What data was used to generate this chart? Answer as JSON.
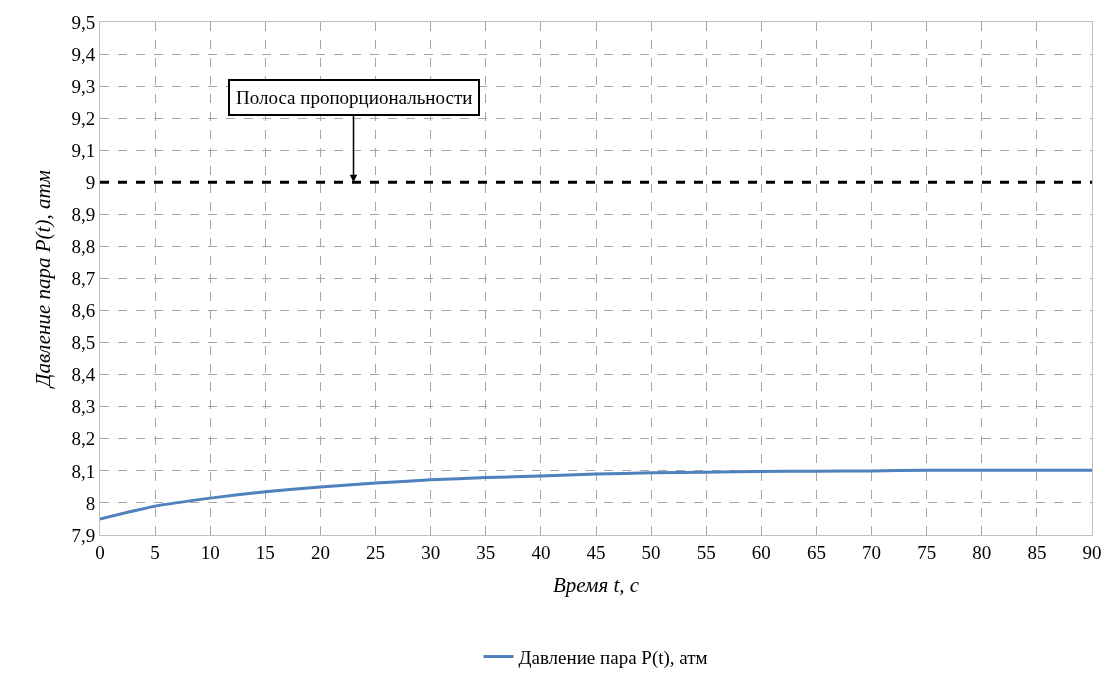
{
  "chart_data": {
    "type": "line",
    "xlabel": "Время t, с",
    "ylabel": "Давление пара P(t), атм",
    "x": [
      0,
      5,
      10,
      15,
      20,
      25,
      30,
      35,
      40,
      45,
      50,
      55,
      60,
      65,
      70,
      75,
      80,
      85,
      90
    ],
    "series": [
      {
        "name": "Давление пара P(t), атм",
        "color": "#4f81bd",
        "values": [
          7.95,
          7.99,
          8.015,
          8.035,
          8.05,
          8.062,
          8.072,
          8.079,
          8.084,
          8.09,
          8.094,
          8.096,
          8.098,
          8.099,
          8.1,
          8.102,
          8.102,
          8.102,
          8.102
        ]
      }
    ],
    "xlim": [
      0,
      90
    ],
    "xticks": [
      0,
      5,
      10,
      15,
      20,
      25,
      30,
      35,
      40,
      45,
      50,
      55,
      60,
      65,
      70,
      75,
      80,
      85,
      90
    ],
    "ylim": [
      7.9,
      9.5
    ],
    "yticks": [
      {
        "value": 7.9,
        "label": "7,9"
      },
      8,
      {
        "value": 8.1,
        "label": "8,1"
      },
      {
        "value": 8.2,
        "label": "8,2"
      },
      {
        "value": 8.3,
        "label": "8,3"
      },
      {
        "value": 8.4,
        "label": "8,4"
      },
      {
        "value": 8.5,
        "label": "8,5"
      },
      {
        "value": 8.6,
        "label": "8,6"
      },
      {
        "value": 8.7,
        "label": "8,7"
      },
      {
        "value": 8.8,
        "label": "8,8"
      },
      {
        "value": 8.9,
        "label": "8,9"
      },
      9,
      {
        "value": 9.1,
        "label": "9,1"
      },
      {
        "value": 9.2,
        "label": "9,2"
      },
      {
        "value": 9.3,
        "label": "9,3"
      },
      {
        "value": 9.4,
        "label": "9,4"
      },
      {
        "value": 9.5,
        "label": "9,5"
      }
    ],
    "ref_lines": [
      {
        "axis": "y",
        "value": 9,
        "color": "#000000",
        "line_style": "dashed"
      }
    ],
    "annotations": [
      {
        "text": "Полоса пропорциональности",
        "x": 23,
        "y": 9
      }
    ],
    "grid": true,
    "legend": "bottom",
    "marker": "none",
    "line_style": "solid"
  }
}
